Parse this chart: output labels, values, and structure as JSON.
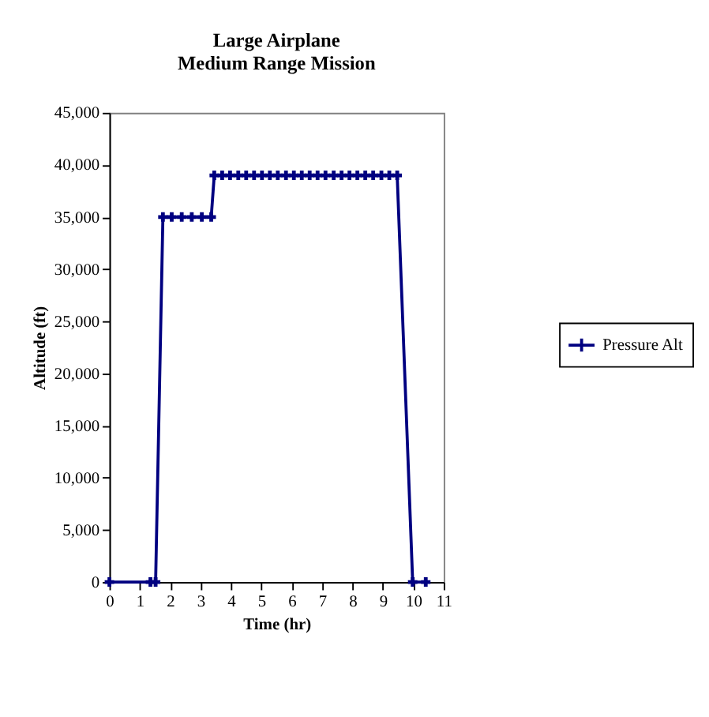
{
  "chart_data": {
    "type": "line",
    "title": [
      "Large Airplane",
      "Medium Range Mission"
    ],
    "xlabel": "Time (hr)",
    "ylabel": "Altitude (ft)",
    "x": [
      0,
      1.35,
      1.52,
      1.76,
      2.05,
      2.38,
      2.71,
      3.04,
      3.35,
      3.45,
      3.71,
      3.97,
      4.24,
      4.5,
      4.76,
      5.02,
      5.28,
      5.54,
      5.81,
      6.07,
      6.33,
      6.59,
      6.85,
      7.11,
      7.38,
      7.64,
      7.9,
      8.16,
      8.42,
      8.68,
      8.95,
      9.21,
      9.47,
      9.98,
      10.41
    ],
    "series": [
      {
        "name": "Pressure Alt",
        "color": "#000080",
        "values": [
          0,
          0,
          0,
          35000,
          35000,
          35000,
          35000,
          35000,
          35000,
          39000,
          39000,
          39000,
          39000,
          39000,
          39000,
          39000,
          39000,
          39000,
          39000,
          39000,
          39000,
          39000,
          39000,
          39000,
          39000,
          39000,
          39000,
          39000,
          39000,
          39000,
          39000,
          39000,
          39000,
          0,
          0
        ]
      }
    ],
    "xlim": [
      0,
      11
    ],
    "xticks": [
      0,
      1,
      2,
      3,
      4,
      5,
      6,
      7,
      8,
      9,
      10,
      11
    ],
    "ylim": [
      0,
      45000
    ],
    "yticks": [
      {
        "value": 0,
        "label": "0"
      },
      {
        "value": 5000,
        "label": "5,000"
      },
      {
        "value": 10000,
        "label": "10,000"
      },
      {
        "value": 15000,
        "label": "15,000"
      },
      {
        "value": 20000,
        "label": "20,000"
      },
      {
        "value": 25000,
        "label": "25,000"
      },
      {
        "value": 30000,
        "label": "30,000"
      },
      {
        "value": 35000,
        "label": "35,000"
      },
      {
        "value": 40000,
        "label": "40,000"
      },
      {
        "value": 45000,
        "label": "45,000"
      }
    ],
    "grid": false,
    "legend": "right",
    "marker": "cross",
    "line_style": "solid"
  }
}
